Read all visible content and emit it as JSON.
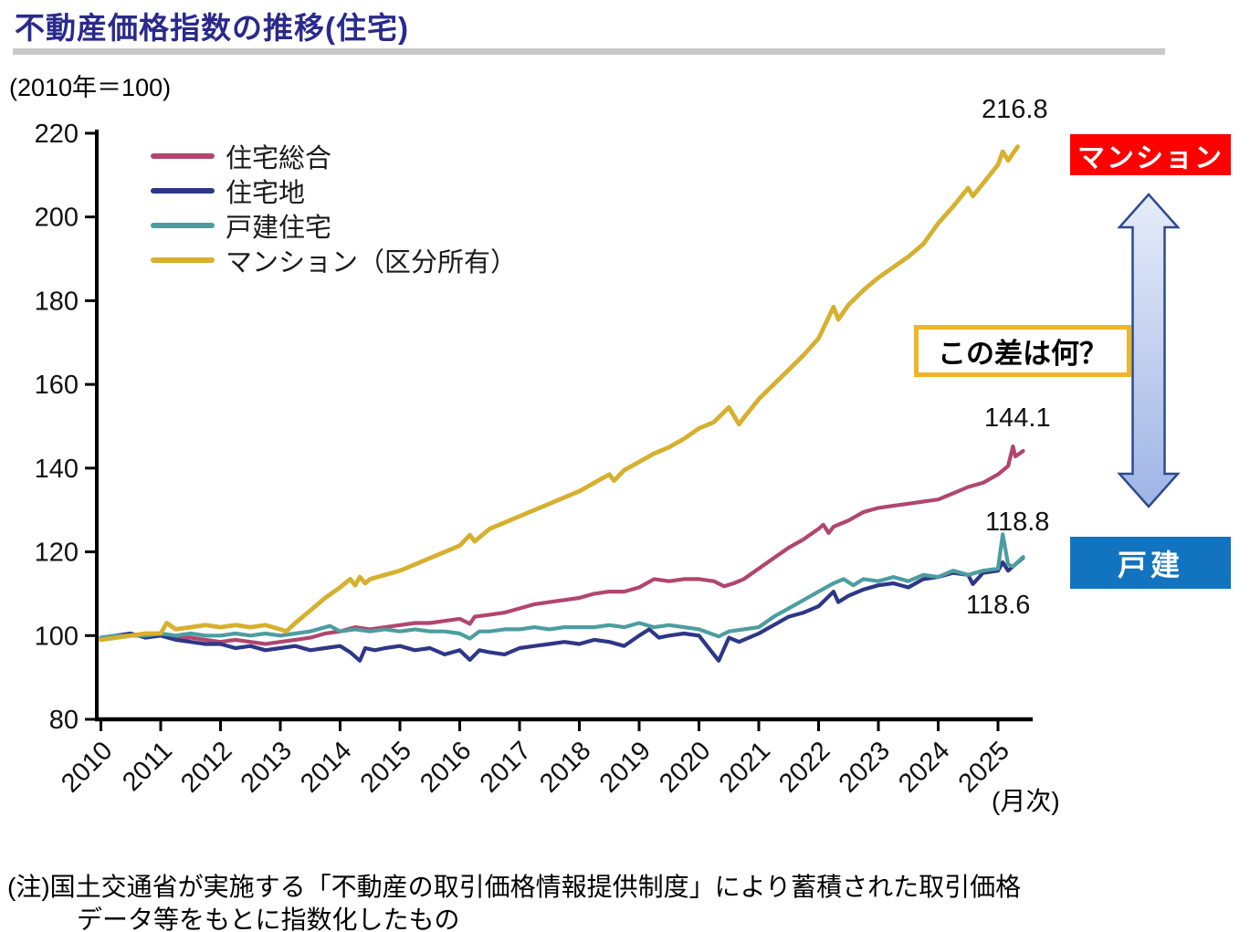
{
  "page": {
    "title": "不動産価格指数の推移(住宅)",
    "unit_note": "(2010年＝100)",
    "x_axis_note": "(月次)",
    "note_line1": "(注)国土交通省が実施する「不動産の取引価格情報提供制度」により蓄積された取引価格",
    "note_line2": "データ等をもとに指数化したもの"
  },
  "legend": [
    {
      "label": "住宅総合",
      "color": "#B0466E"
    },
    {
      "label": "住宅地",
      "color": "#2E3787"
    },
    {
      "label": "戸建住宅",
      "color": "#4D9DA0"
    },
    {
      "label": "マンション（区分所有）",
      "color": "#D6B02E"
    }
  ],
  "annotations": {
    "mansion_label": "マンション",
    "kodate_label": "戸建",
    "question_label": "この差は何？",
    "end_values": {
      "mansion": "216.8",
      "sogo": "144.1",
      "kodate": "118.8",
      "takuchi": "118.6"
    }
  },
  "chart_data": {
    "type": "line",
    "title": "不動産価格指数の推移(住宅)",
    "subtitle": "(2010年＝100)",
    "xlabel": "(月次)",
    "ylabel": "",
    "xlim": [
      2010,
      2025.6
    ],
    "ylim": [
      80,
      220
    ],
    "grid": false,
    "legend_position": "upper-left-inside",
    "x_ticks": [
      2010,
      2011,
      2012,
      2013,
      2014,
      2015,
      2016,
      2017,
      2018,
      2019,
      2020,
      2021,
      2022,
      2023,
      2024,
      2025
    ],
    "y_ticks": [
      80,
      100,
      120,
      140,
      160,
      180,
      200,
      220
    ],
    "end_labels": {
      "マンション（区分所有）": 216.8,
      "住宅総合": 144.1,
      "戸建住宅": 118.8,
      "住宅地": 118.6
    },
    "series": [
      {
        "name": "住宅総合",
        "color": "#B0466E",
        "points": [
          [
            2010.0,
            99.0
          ],
          [
            2010.25,
            99.5
          ],
          [
            2010.5,
            100.0
          ],
          [
            2010.75,
            100.0
          ],
          [
            2011.0,
            100.0
          ],
          [
            2011.25,
            99.5
          ],
          [
            2011.5,
            99.5
          ],
          [
            2011.75,
            99.0
          ],
          [
            2012.0,
            98.5
          ],
          [
            2012.25,
            99.0
          ],
          [
            2012.5,
            98.5
          ],
          [
            2012.75,
            98.0
          ],
          [
            2013.0,
            98.5
          ],
          [
            2013.25,
            99.0
          ],
          [
            2013.5,
            99.5
          ],
          [
            2013.75,
            100.5
          ],
          [
            2014.0,
            101.0
          ],
          [
            2014.25,
            102.0
          ],
          [
            2014.5,
            101.5
          ],
          [
            2014.75,
            102.0
          ],
          [
            2015.0,
            102.5
          ],
          [
            2015.25,
            103.0
          ],
          [
            2015.5,
            103.0
          ],
          [
            2015.75,
            103.5
          ],
          [
            2016.0,
            104.0
          ],
          [
            2016.17,
            102.8
          ],
          [
            2016.25,
            104.5
          ],
          [
            2016.5,
            105.0
          ],
          [
            2016.75,
            105.5
          ],
          [
            2017.0,
            106.5
          ],
          [
            2017.25,
            107.5
          ],
          [
            2017.5,
            108.0
          ],
          [
            2017.75,
            108.5
          ],
          [
            2018.0,
            109.0
          ],
          [
            2018.25,
            110.0
          ],
          [
            2018.5,
            110.5
          ],
          [
            2018.75,
            110.5
          ],
          [
            2019.0,
            111.5
          ],
          [
            2019.25,
            113.5
          ],
          [
            2019.5,
            113.0
          ],
          [
            2019.75,
            113.5
          ],
          [
            2020.0,
            113.5
          ],
          [
            2020.25,
            113.0
          ],
          [
            2020.42,
            111.8
          ],
          [
            2020.58,
            112.5
          ],
          [
            2020.75,
            113.5
          ],
          [
            2021.0,
            116.0
          ],
          [
            2021.25,
            118.5
          ],
          [
            2021.5,
            121.0
          ],
          [
            2021.75,
            123.0
          ],
          [
            2022.0,
            125.5
          ],
          [
            2022.08,
            126.5
          ],
          [
            2022.17,
            124.5
          ],
          [
            2022.25,
            126.0
          ],
          [
            2022.5,
            127.5
          ],
          [
            2022.75,
            129.5
          ],
          [
            2023.0,
            130.5
          ],
          [
            2023.25,
            131.0
          ],
          [
            2023.5,
            131.5
          ],
          [
            2023.75,
            132.0
          ],
          [
            2024.0,
            132.5
          ],
          [
            2024.25,
            134.0
          ],
          [
            2024.5,
            135.5
          ],
          [
            2024.75,
            136.5
          ],
          [
            2025.0,
            138.5
          ],
          [
            2025.17,
            140.5
          ],
          [
            2025.25,
            145.2
          ],
          [
            2025.29,
            142.8
          ],
          [
            2025.42,
            144.1
          ]
        ]
      },
      {
        "name": "住宅地",
        "color": "#2E3787",
        "points": [
          [
            2010.0,
            99.5
          ],
          [
            2010.25,
            100.0
          ],
          [
            2010.5,
            100.5
          ],
          [
            2010.75,
            99.5
          ],
          [
            2011.0,
            100.0
          ],
          [
            2011.25,
            99.0
          ],
          [
            2011.5,
            98.5
          ],
          [
            2011.75,
            98.0
          ],
          [
            2012.0,
            98.0
          ],
          [
            2012.25,
            97.0
          ],
          [
            2012.5,
            97.5
          ],
          [
            2012.75,
            96.5
          ],
          [
            2013.0,
            97.0
          ],
          [
            2013.25,
            97.5
          ],
          [
            2013.5,
            96.5
          ],
          [
            2013.75,
            97.0
          ],
          [
            2014.0,
            97.5
          ],
          [
            2014.17,
            96.0
          ],
          [
            2014.33,
            94.0
          ],
          [
            2014.42,
            97.0
          ],
          [
            2014.58,
            96.5
          ],
          [
            2014.75,
            97.0
          ],
          [
            2015.0,
            97.5
          ],
          [
            2015.25,
            96.5
          ],
          [
            2015.5,
            97.0
          ],
          [
            2015.75,
            95.5
          ],
          [
            2016.0,
            96.5
          ],
          [
            2016.17,
            94.2
          ],
          [
            2016.33,
            96.5
          ],
          [
            2016.5,
            96.0
          ],
          [
            2016.75,
            95.5
          ],
          [
            2017.0,
            97.0
          ],
          [
            2017.25,
            97.5
          ],
          [
            2017.5,
            98.0
          ],
          [
            2017.75,
            98.5
          ],
          [
            2018.0,
            98.0
          ],
          [
            2018.25,
            99.0
          ],
          [
            2018.5,
            98.5
          ],
          [
            2018.75,
            97.5
          ],
          [
            2019.0,
            100.0
          ],
          [
            2019.17,
            101.5
          ],
          [
            2019.33,
            99.5
          ],
          [
            2019.5,
            100.0
          ],
          [
            2019.75,
            100.5
          ],
          [
            2020.0,
            100.0
          ],
          [
            2020.33,
            94.0
          ],
          [
            2020.5,
            99.5
          ],
          [
            2020.67,
            98.5
          ],
          [
            2020.75,
            99.0
          ],
          [
            2021.0,
            100.5
          ],
          [
            2021.25,
            102.5
          ],
          [
            2021.5,
            104.5
          ],
          [
            2021.75,
            105.5
          ],
          [
            2022.0,
            107.0
          ],
          [
            2022.25,
            110.5
          ],
          [
            2022.33,
            108.0
          ],
          [
            2022.5,
            109.5
          ],
          [
            2022.75,
            111.0
          ],
          [
            2023.0,
            112.0
          ],
          [
            2023.25,
            112.5
          ],
          [
            2023.5,
            111.5
          ],
          [
            2023.75,
            113.5
          ],
          [
            2024.0,
            114.0
          ],
          [
            2024.25,
            115.0
          ],
          [
            2024.5,
            114.5
          ],
          [
            2024.58,
            112.3
          ],
          [
            2024.75,
            115.0
          ],
          [
            2025.0,
            115.5
          ],
          [
            2025.08,
            117.5
          ],
          [
            2025.17,
            115.5
          ],
          [
            2025.25,
            116.5
          ],
          [
            2025.42,
            118.6
          ]
        ]
      },
      {
        "name": "戸建住宅",
        "color": "#4D9DA0",
        "points": [
          [
            2010.0,
            99.5
          ],
          [
            2010.25,
            100.0
          ],
          [
            2010.5,
            100.0
          ],
          [
            2010.75,
            100.0
          ],
          [
            2011.0,
            100.5
          ],
          [
            2011.25,
            100.0
          ],
          [
            2011.5,
            100.5
          ],
          [
            2011.75,
            100.0
          ],
          [
            2012.0,
            100.0
          ],
          [
            2012.25,
            100.5
          ],
          [
            2012.5,
            100.0
          ],
          [
            2012.75,
            100.5
          ],
          [
            2013.0,
            100.0
          ],
          [
            2013.25,
            100.5
          ],
          [
            2013.5,
            101.0
          ],
          [
            2013.83,
            102.3
          ],
          [
            2014.0,
            101.0
          ],
          [
            2014.25,
            101.5
          ],
          [
            2014.5,
            101.0
          ],
          [
            2014.75,
            101.5
          ],
          [
            2015.0,
            101.0
          ],
          [
            2015.25,
            101.5
          ],
          [
            2015.5,
            101.0
          ],
          [
            2015.75,
            101.0
          ],
          [
            2016.0,
            100.5
          ],
          [
            2016.17,
            99.3
          ],
          [
            2016.33,
            101.0
          ],
          [
            2016.5,
            101.0
          ],
          [
            2016.75,
            101.5
          ],
          [
            2017.0,
            101.5
          ],
          [
            2017.25,
            102.0
          ],
          [
            2017.5,
            101.5
          ],
          [
            2017.75,
            102.0
          ],
          [
            2018.0,
            102.0
          ],
          [
            2018.25,
            102.0
          ],
          [
            2018.5,
            102.5
          ],
          [
            2018.75,
            102.0
          ],
          [
            2019.0,
            103.0
          ],
          [
            2019.25,
            102.0
          ],
          [
            2019.5,
            102.5
          ],
          [
            2019.75,
            102.0
          ],
          [
            2020.0,
            101.5
          ],
          [
            2020.33,
            99.8
          ],
          [
            2020.5,
            101.0
          ],
          [
            2020.75,
            101.5
          ],
          [
            2021.0,
            102.0
          ],
          [
            2021.25,
            104.5
          ],
          [
            2021.5,
            106.5
          ],
          [
            2021.75,
            108.5
          ],
          [
            2022.0,
            110.5
          ],
          [
            2022.25,
            112.5
          ],
          [
            2022.42,
            113.5
          ],
          [
            2022.58,
            112.0
          ],
          [
            2022.75,
            113.5
          ],
          [
            2023.0,
            113.0
          ],
          [
            2023.25,
            114.0
          ],
          [
            2023.5,
            113.0
          ],
          [
            2023.75,
            114.5
          ],
          [
            2024.0,
            114.0
          ],
          [
            2024.25,
            115.5
          ],
          [
            2024.5,
            114.5
          ],
          [
            2024.75,
            115.5
          ],
          [
            2025.0,
            116.0
          ],
          [
            2025.08,
            124.2
          ],
          [
            2025.17,
            117.0
          ],
          [
            2025.25,
            116.5
          ],
          [
            2025.42,
            118.8
          ]
        ]
      },
      {
        "name": "マンション（区分所有）",
        "color": "#D6B02E",
        "points": [
          [
            2010.0,
            99.0
          ],
          [
            2010.25,
            99.5
          ],
          [
            2010.5,
            100.0
          ],
          [
            2010.75,
            100.5
          ],
          [
            2011.0,
            100.5
          ],
          [
            2011.1,
            103.0
          ],
          [
            2011.25,
            101.5
          ],
          [
            2011.5,
            102.0
          ],
          [
            2011.75,
            102.5
          ],
          [
            2012.0,
            102.0
          ],
          [
            2012.25,
            102.5
          ],
          [
            2012.5,
            102.0
          ],
          [
            2012.75,
            102.5
          ],
          [
            2013.0,
            101.5
          ],
          [
            2013.1,
            101.0
          ],
          [
            2013.25,
            103.0
          ],
          [
            2013.5,
            106.0
          ],
          [
            2013.75,
            109.0
          ],
          [
            2014.0,
            111.5
          ],
          [
            2014.17,
            113.5
          ],
          [
            2014.25,
            112.0
          ],
          [
            2014.33,
            114.0
          ],
          [
            2014.42,
            112.5
          ],
          [
            2014.5,
            113.5
          ],
          [
            2014.75,
            114.5
          ],
          [
            2015.0,
            115.5
          ],
          [
            2015.25,
            117.0
          ],
          [
            2015.5,
            118.5
          ],
          [
            2015.75,
            120.0
          ],
          [
            2016.0,
            121.5
          ],
          [
            2016.17,
            124.0
          ],
          [
            2016.25,
            122.5
          ],
          [
            2016.5,
            125.5
          ],
          [
            2016.75,
            127.0
          ],
          [
            2017.0,
            128.5
          ],
          [
            2017.25,
            130.0
          ],
          [
            2017.5,
            131.5
          ],
          [
            2017.75,
            133.0
          ],
          [
            2018.0,
            134.5
          ],
          [
            2018.25,
            136.5
          ],
          [
            2018.5,
            138.5
          ],
          [
            2018.58,
            137.0
          ],
          [
            2018.75,
            139.5
          ],
          [
            2019.0,
            141.5
          ],
          [
            2019.25,
            143.5
          ],
          [
            2019.5,
            145.0
          ],
          [
            2019.75,
            147.0
          ],
          [
            2020.0,
            149.5
          ],
          [
            2020.25,
            151.0
          ],
          [
            2020.5,
            154.5
          ],
          [
            2020.67,
            150.5
          ],
          [
            2020.75,
            152.0
          ],
          [
            2021.0,
            156.5
          ],
          [
            2021.25,
            160.0
          ],
          [
            2021.5,
            163.5
          ],
          [
            2021.75,
            167.0
          ],
          [
            2022.0,
            171.0
          ],
          [
            2022.25,
            178.5
          ],
          [
            2022.33,
            175.5
          ],
          [
            2022.5,
            179.0
          ],
          [
            2022.75,
            182.5
          ],
          [
            2023.0,
            185.5
          ],
          [
            2023.25,
            188.0
          ],
          [
            2023.5,
            190.5
          ],
          [
            2023.75,
            193.5
          ],
          [
            2024.0,
            198.5
          ],
          [
            2024.25,
            202.5
          ],
          [
            2024.5,
            206.9
          ],
          [
            2024.58,
            205.0
          ],
          [
            2024.75,
            208.0
          ],
          [
            2025.0,
            212.5
          ],
          [
            2025.08,
            215.6
          ],
          [
            2025.17,
            213.5
          ],
          [
            2025.33,
            216.8
          ]
        ]
      }
    ]
  }
}
